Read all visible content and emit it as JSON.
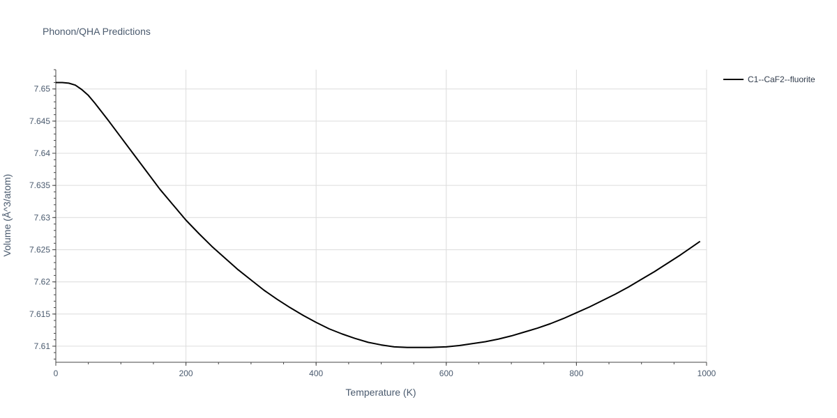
{
  "chart_data": {
    "type": "line",
    "title": "Phonon/QHA Predictions",
    "xlabel": "Temperature (K)",
    "ylabel": "Volume (Å^3/atom)",
    "xlim": [
      0,
      1000
    ],
    "ylim": [
      7.6075,
      7.653
    ],
    "xticks": [
      0,
      200,
      400,
      600,
      800,
      1000
    ],
    "xtick_labels": [
      "0",
      "200",
      "400",
      "600",
      "800",
      "1000"
    ],
    "yticks": [
      7.61,
      7.615,
      7.62,
      7.625,
      7.63,
      7.635,
      7.64,
      7.645,
      7.65
    ],
    "ytick_labels": [
      "7.61",
      "7.615",
      "7.62",
      "7.625",
      "7.63",
      "7.635",
      "7.64",
      "7.645",
      "7.65"
    ],
    "grid": true,
    "legend_position": "top-right, outside plot",
    "series": [
      {
        "name": "C1--CaF2--fluorite",
        "color": "#000000",
        "x": [
          0,
          10,
          20,
          30,
          40,
          50,
          60,
          70,
          80,
          100,
          120,
          140,
          160,
          180,
          200,
          220,
          240,
          260,
          280,
          300,
          320,
          340,
          360,
          380,
          400,
          420,
          440,
          460,
          480,
          500,
          520,
          540,
          560,
          575,
          600,
          620,
          640,
          660,
          680,
          700,
          720,
          740,
          760,
          780,
          800,
          820,
          840,
          860,
          880,
          900,
          920,
          940,
          960,
          980,
          990
        ],
        "y": [
          7.651,
          7.651,
          7.6509,
          7.6506,
          7.6499,
          7.649,
          7.6478,
          7.6465,
          7.6452,
          7.6425,
          7.6398,
          7.6371,
          7.6344,
          7.632,
          7.6296,
          7.6275,
          7.6255,
          7.6237,
          7.6219,
          7.6203,
          7.6187,
          7.6173,
          7.616,
          7.6148,
          7.6137,
          7.6127,
          7.6119,
          7.6112,
          7.6106,
          7.6102,
          7.6099,
          7.6098,
          7.6098,
          7.6098,
          7.6099,
          7.6101,
          7.6104,
          7.6107,
          7.6111,
          7.6116,
          7.6122,
          7.6128,
          7.6135,
          7.6143,
          7.6152,
          7.6161,
          7.6171,
          7.6181,
          7.6192,
          7.6204,
          7.6216,
          7.6229,
          7.6242,
          7.6256,
          7.6263
        ]
      }
    ]
  }
}
